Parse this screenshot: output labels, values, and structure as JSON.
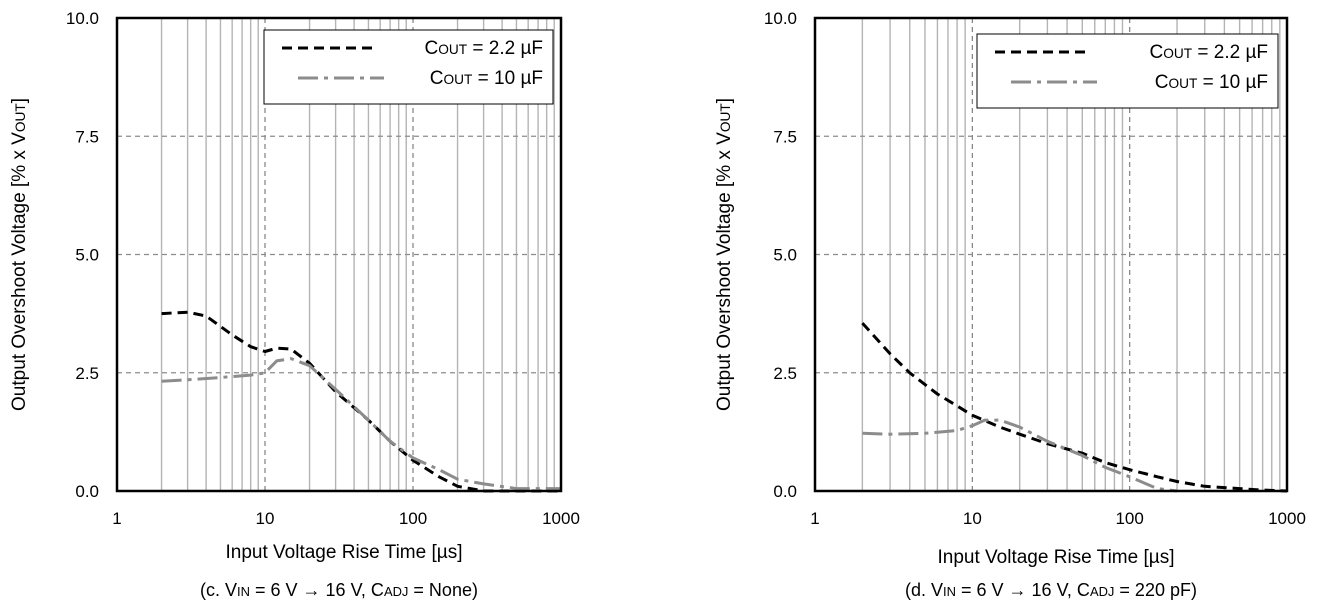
{
  "chart_data": [
    {
      "type": "line",
      "xlabel": "Input Voltage Rise Time [µs]",
      "ylabel": "Output Overshoot Voltage [% x VOUT]",
      "ylabel_parts": [
        "Output Overshoot Voltage [% x V",
        "OUT",
        "]"
      ],
      "caption_parts": [
        "(c. V",
        "IN",
        " = 6 V → 16 V, C",
        "ADJ",
        " = None)"
      ],
      "x_scale": "log",
      "xlim": [
        1,
        1000
      ],
      "ylim": [
        0,
        10
      ],
      "x_ticks": [
        "1",
        "10",
        "100",
        "1000"
      ],
      "y_ticks": [
        "0.0",
        "2.5",
        "5.0",
        "7.5",
        "10.0"
      ],
      "grid": true,
      "legend_position": "top-right",
      "series": [
        {
          "name": "COUT = 2.2 µF",
          "label_parts": [
            "C",
            "OUT",
            " = 2.2 µF"
          ],
          "color": "#000000",
          "style": "dashed",
          "x": [
            2,
            3,
            4,
            6,
            8,
            10,
            12,
            15,
            20,
            30,
            50,
            70,
            100,
            150,
            200,
            300,
            500,
            700,
            1000
          ],
          "y": [
            3.75,
            3.78,
            3.7,
            3.3,
            3.05,
            2.95,
            3.02,
            3.0,
            2.7,
            2.1,
            1.5,
            1.05,
            0.65,
            0.3,
            0.1,
            0.0,
            0.0,
            0.0,
            0.0
          ]
        },
        {
          "name": "COUT = 10 µF",
          "label_parts": [
            "C",
            "OUT",
            " = 10 µF"
          ],
          "color": "#8c8c8c",
          "style": "dashdot",
          "x": [
            2,
            3,
            5,
            8,
            10,
            12,
            15,
            20,
            30,
            50,
            70,
            100,
            150,
            200,
            300,
            500,
            700,
            1000
          ],
          "y": [
            2.32,
            2.35,
            2.4,
            2.45,
            2.5,
            2.75,
            2.8,
            2.65,
            2.15,
            1.5,
            1.05,
            0.7,
            0.45,
            0.25,
            0.15,
            0.05,
            0.05,
            0.05
          ]
        }
      ]
    },
    {
      "type": "line",
      "xlabel": "Input Voltage Rise Time [µs]",
      "ylabel": "Output Overshoot Voltage [% x VOUT]",
      "ylabel_parts": [
        "Output Overshoot Voltage [% x V",
        "OUT",
        "]"
      ],
      "caption_parts": [
        "(d. V",
        "IN",
        " = 6 V → 16 V, C",
        "ADJ",
        " = 220 pF)"
      ],
      "x_scale": "log",
      "xlim": [
        1,
        1000
      ],
      "ylim": [
        0,
        10
      ],
      "x_ticks": [
        "1",
        "10",
        "100",
        "1000"
      ],
      "y_ticks": [
        "0.0",
        "2.5",
        "5.0",
        "7.5",
        "10.0"
      ],
      "grid": true,
      "legend_position": "top-right",
      "series": [
        {
          "name": "COUT = 2.2 µF",
          "label_parts": [
            "C",
            "OUT",
            " = 2.2 µF"
          ],
          "color": "#000000",
          "style": "dashed",
          "x": [
            2,
            3,
            4,
            6,
            8,
            10,
            15,
            20,
            30,
            50,
            70,
            100,
            150,
            200,
            300,
            500,
            700,
            1000
          ],
          "y": [
            3.55,
            2.9,
            2.5,
            2.05,
            1.8,
            1.6,
            1.35,
            1.2,
            1.0,
            0.8,
            0.6,
            0.45,
            0.3,
            0.2,
            0.1,
            0.05,
            0.02,
            0.0
          ]
        },
        {
          "name": "COUT = 10 µF",
          "label_parts": [
            "C",
            "OUT",
            " = 10 µF"
          ],
          "color": "#8c8c8c",
          "style": "dashdot",
          "x": [
            2,
            3,
            5,
            8,
            10,
            12,
            15,
            20,
            30,
            50,
            70,
            100,
            150,
            200
          ],
          "y": [
            1.22,
            1.2,
            1.22,
            1.28,
            1.38,
            1.5,
            1.5,
            1.35,
            1.05,
            0.75,
            0.5,
            0.3,
            0.05,
            0.0
          ]
        }
      ]
    }
  ]
}
